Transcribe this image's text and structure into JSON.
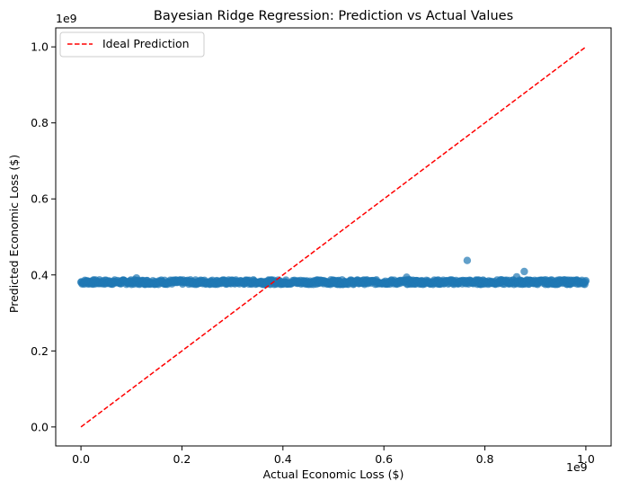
{
  "chart_data": {
    "type": "scatter",
    "title": "Bayesian Ridge Regression: Prediction vs Actual Values",
    "xlabel": "Actual Economic Loss ($)",
    "ylabel": "Predicted Economic Loss ($)",
    "x_offset_label": "1e9",
    "y_offset_label": "1e9",
    "xlim": [
      -0.05,
      1.05
    ],
    "ylim": [
      -0.05,
      1.05
    ],
    "x_scale_factor": 1000000000,
    "y_scale_factor": 1000000000,
    "x_ticks": [
      {
        "value": 0.0,
        "label": "0.0"
      },
      {
        "value": 0.2,
        "label": "0.2"
      },
      {
        "value": 0.4,
        "label": "0.4"
      },
      {
        "value": 0.6,
        "label": "0.6"
      },
      {
        "value": 0.8,
        "label": "0.8"
      },
      {
        "value": 1.0,
        "label": "1.0"
      }
    ],
    "y_ticks": [
      {
        "value": 0.0,
        "label": "0.0"
      },
      {
        "value": 0.2,
        "label": "0.2"
      },
      {
        "value": 0.4,
        "label": "0.4"
      },
      {
        "value": 0.6,
        "label": "0.6"
      },
      {
        "value": 0.8,
        "label": "0.8"
      },
      {
        "value": 1.0,
        "label": "1.0"
      }
    ],
    "grid": false,
    "legend_position": "top-left",
    "series": [
      {
        "name": "",
        "kind": "scatter",
        "color": "#1f77b4",
        "opacity": 0.7,
        "band": {
          "x_range": [
            0.0,
            1.0
          ],
          "y_center": 0.381,
          "y_spread": 0.006
        },
        "points": [
          {
            "x": 0.11,
            "y": 0.392
          },
          {
            "x": 0.645,
            "y": 0.394
          },
          {
            "x": 0.765,
            "y": 0.438
          },
          {
            "x": 0.863,
            "y": 0.395
          },
          {
            "x": 0.878,
            "y": 0.409
          },
          {
            "x": 0.01,
            "y": 0.384
          },
          {
            "x": 0.3,
            "y": 0.386
          },
          {
            "x": 0.5,
            "y": 0.385
          },
          {
            "x": 0.97,
            "y": 0.386
          }
        ]
      },
      {
        "name": "Ideal Prediction",
        "kind": "line",
        "color": "#ff0000",
        "dash": "dashed",
        "x": [
          0.0,
          1.0
        ],
        "y": [
          0.0,
          1.0
        ]
      }
    ]
  }
}
